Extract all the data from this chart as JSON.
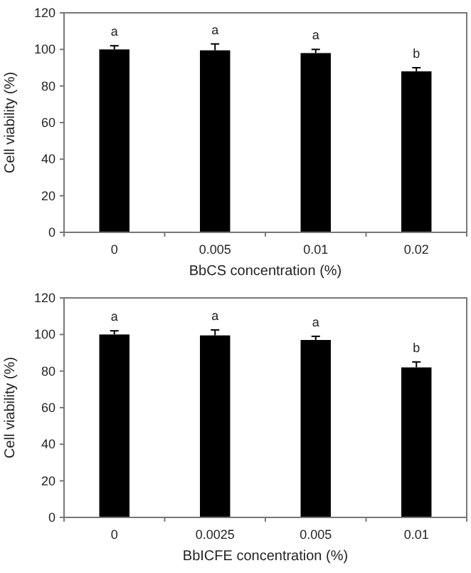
{
  "chart_data": [
    {
      "type": "bar",
      "categories": [
        "0",
        "0.005",
        "0.01",
        "0.02"
      ],
      "values": [
        100,
        99.5,
        98,
        88
      ],
      "errors": [
        2,
        3.5,
        2,
        2
      ],
      "color": "#000000",
      "xlabel": "BbCS concentration (%)",
      "ylabel": "Cell viability (%)",
      "ylim": [
        0,
        120
      ],
      "yticks": [
        0,
        20,
        40,
        60,
        80,
        100,
        120
      ],
      "grid": false,
      "annotations": [
        "a",
        "a",
        "a",
        "b"
      ]
    },
    {
      "type": "bar",
      "categories": [
        "0",
        "0.0025",
        "0.005",
        "0.01"
      ],
      "values": [
        100,
        99.5,
        97,
        82
      ],
      "errors": [
        2,
        3,
        2,
        3
      ],
      "color": "#000000",
      "xlabel": "BbICFE concentration (%)",
      "ylabel": "Cell viability (%)",
      "ylim": [
        0,
        120
      ],
      "yticks": [
        0,
        20,
        40,
        60,
        80,
        100,
        120
      ],
      "grid": false,
      "annotations": [
        "a",
        "a",
        "a",
        "b"
      ]
    }
  ]
}
